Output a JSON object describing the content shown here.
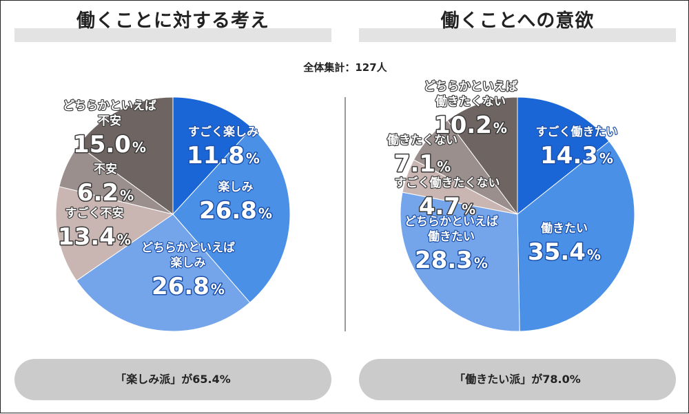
{
  "total_label": "全体集計：127人",
  "chart_data": [
    {
      "type": "pie",
      "title": "働くことに対する考え",
      "slices": [
        {
          "label_lines": [
            "すごく楽しみ"
          ],
          "value": 11.8,
          "color": "#1a66d6"
        },
        {
          "label_lines": [
            "楽しみ"
          ],
          "value": 26.8,
          "color": "#4a90e6"
        },
        {
          "label_lines": [
            "どちらかといえば",
            "楽しみ"
          ],
          "value": 26.8,
          "color": "#74a4ea"
        },
        {
          "label_lines": [
            "すごく不安"
          ],
          "value": 13.4,
          "color": "#c9b6b2"
        },
        {
          "label_lines": [
            "不安"
          ],
          "value": 6.2,
          "color": "#9b8f8d"
        },
        {
          "label_lines": [
            "どちらかといえば",
            "不安"
          ],
          "value": 15.0,
          "color": "#6e6462"
        }
      ],
      "summary": "「楽しみ派」が65.4%"
    },
    {
      "type": "pie",
      "title": "働くことへの意欲",
      "slices": [
        {
          "label_lines": [
            "すごく働きたい"
          ],
          "value": 14.3,
          "color": "#1a66d6"
        },
        {
          "label_lines": [
            "働きたい"
          ],
          "value": 35.4,
          "color": "#4a90e6"
        },
        {
          "label_lines": [
            "どちらかといえば",
            "働きたい"
          ],
          "value": 28.3,
          "color": "#74a4ea"
        },
        {
          "label_lines": [
            "すごく働きたくない"
          ],
          "value": 4.7,
          "color": "#c9b6b2"
        },
        {
          "label_lines": [
            "働きたくない"
          ],
          "value": 7.1,
          "color": "#9b8f8d"
        },
        {
          "label_lines": [
            "どちらかといえば",
            "働きたくない"
          ],
          "value": 10.2,
          "color": "#6e6462"
        }
      ],
      "summary": "「働きたい派」が78.0%"
    }
  ]
}
